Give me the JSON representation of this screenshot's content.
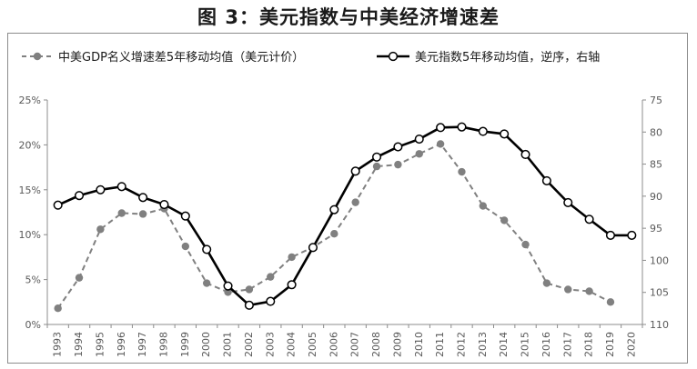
{
  "title": "图 3：美元指数与中美经济增速差",
  "chart_data": {
    "type": "line",
    "x": [
      1993,
      1994,
      1995,
      1996,
      1997,
      1998,
      1999,
      2000,
      2001,
      2002,
      2003,
      2004,
      2005,
      2006,
      2007,
      2008,
      2009,
      2010,
      2011,
      2012,
      2013,
      2014,
      2015,
      2016,
      2017,
      2018,
      2019,
      2020
    ],
    "x_tick_labels": [
      "1993",
      "1994",
      "1995",
      "1996",
      "1997",
      "1998",
      "1999",
      "2000",
      "2001",
      "2002",
      "2003",
      "2004",
      "2005",
      "2006",
      "2007",
      "2008",
      "2009",
      "2010",
      "2011",
      "2012",
      "2013",
      "2014",
      "2015",
      "2016",
      "2017",
      "2018",
      "2019",
      "2020"
    ],
    "y_left": {
      "ticks": [
        0,
        5,
        10,
        15,
        20,
        25
      ],
      "tick_labels": [
        "0%",
        "5%",
        "10%",
        "15%",
        "20%",
        "25%"
      ],
      "range": [
        0,
        25
      ]
    },
    "y_right": {
      "ticks": [
        75,
        80,
        85,
        90,
        95,
        100,
        105,
        110
      ],
      "tick_labels": [
        "75",
        "80",
        "85",
        "90",
        "95",
        "100",
        "105",
        "110"
      ],
      "range": [
        75,
        110
      ],
      "reversed": true
    },
    "grid": false,
    "legend_position": "top",
    "series": [
      {
        "name": "中美GDP名义增速差5年移动均值（美元计价）",
        "axis": "left",
        "unit": "%",
        "style": "dashed",
        "color": "#808080",
        "values": [
          1.8,
          5.2,
          10.6,
          12.4,
          12.3,
          12.9,
          8.7,
          4.6,
          3.6,
          3.9,
          5.3,
          7.5,
          8.6,
          10.1,
          13.6,
          17.6,
          17.8,
          19.0,
          20.1,
          17.0,
          13.2,
          11.6,
          8.9,
          4.6,
          3.9,
          3.7,
          2.5,
          null
        ]
      },
      {
        "name": "美元指数5年移动均值，逆序，右轴",
        "axis": "right",
        "style": "solid",
        "color": "#000000",
        "values": [
          91.4,
          89.9,
          89.0,
          88.5,
          90.2,
          91.3,
          93.1,
          98.3,
          104.0,
          107.0,
          106.4,
          103.8,
          98.0,
          92.1,
          86.1,
          83.9,
          82.3,
          81.1,
          79.3,
          79.2,
          79.9,
          80.3,
          83.5,
          87.6,
          91.0,
          93.6,
          96.1,
          96.1
        ]
      }
    ]
  }
}
